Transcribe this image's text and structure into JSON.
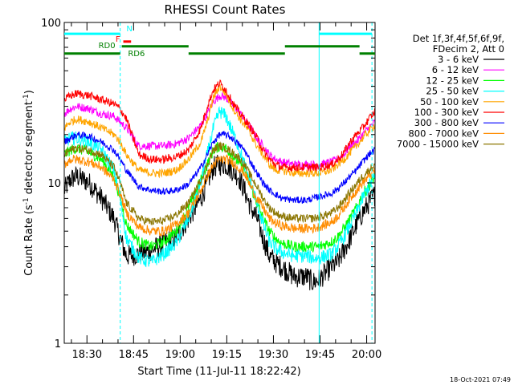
{
  "chart_data": {
    "type": "line",
    "title": "RHESSI Count Rates",
    "xlabel": "Start Time (11-Jul-11 18:22:42)",
    "ylabel_main": "Count Rate (s",
    "ylabel_sup1": "-1",
    "ylabel_mid": " detector segment",
    "ylabel_sup2": "-1",
    "ylabel_end": ")",
    "x_axis_unit": "minutes after 18:22:42",
    "xlim": [
      0,
      100
    ],
    "ylim": [
      1,
      100
    ],
    "y_scale": "log",
    "x_ticks": [
      {
        "value": 7.3,
        "label": "18:30"
      },
      {
        "value": 22.3,
        "label": "18:45"
      },
      {
        "value": 37.3,
        "label": "19:00"
      },
      {
        "value": 52.3,
        "label": "19:15"
      },
      {
        "value": 67.3,
        "label": "19:30"
      },
      {
        "value": 82.3,
        "label": "19:45"
      },
      {
        "value": 97.3,
        "label": "20:00"
      }
    ],
    "y_ticks": [
      {
        "value": 1,
        "label": "1"
      },
      {
        "value": 10,
        "label": "10"
      },
      {
        "value": 100,
        "label": "100"
      }
    ],
    "legend_placement": "right",
    "legend_header": [
      "Det 1f,3f,4f,5f,6f,9f,",
      "FDecim 2, Att 0"
    ],
    "series": [
      {
        "name": "3 - 6 keV",
        "color": "#000000",
        "noise": 0.16,
        "x": [
          0,
          2,
          4,
          8,
          12,
          16,
          18,
          20,
          24,
          28,
          32,
          36,
          40,
          44,
          46,
          48,
          50,
          52,
          54,
          56,
          58,
          60,
          62,
          64,
          66,
          68,
          70,
          74,
          78,
          80,
          82,
          86,
          88,
          90,
          92,
          94,
          96,
          98,
          100
        ],
        "y": [
          9.0,
          10.5,
          11.0,
          10.0,
          8.0,
          6.0,
          4.5,
          3.5,
          3.6,
          3.8,
          4.2,
          4.6,
          6.0,
          8.0,
          10.0,
          12.5,
          13.0,
          13.0,
          12.0,
          11.0,
          9.0,
          7.0,
          6.0,
          4.5,
          3.5,
          3.2,
          3.0,
          2.6,
          2.6,
          2.4,
          2.5,
          3.0,
          3.2,
          3.8,
          4.5,
          5.5,
          6.5,
          7.5,
          8.5
        ]
      },
      {
        "name": "6 - 12 keV",
        "color": "#ff00ff",
        "noise": 0.06,
        "x": [
          0,
          2,
          4,
          8,
          12,
          16,
          18,
          20,
          24,
          28,
          32,
          36,
          40,
          44,
          46,
          48,
          50,
          52,
          54,
          56,
          58,
          60,
          62,
          64,
          66,
          68,
          70,
          74,
          78,
          80,
          82,
          86,
          88,
          90,
          92,
          94,
          96,
          98,
          100
        ],
        "y": [
          27,
          29,
          30,
          29,
          27,
          26,
          24,
          22,
          17,
          17,
          17,
          17.5,
          19,
          23,
          27,
          32,
          35,
          34,
          31,
          28,
          25,
          22,
          19,
          17,
          15,
          14,
          13.5,
          13,
          13,
          13,
          13,
          13.5,
          14,
          15,
          17,
          18,
          20,
          22,
          24
        ]
      },
      {
        "name": "12 - 25 keV",
        "color": "#00ff00",
        "noise": 0.08,
        "x": [
          0,
          2,
          4,
          8,
          12,
          16,
          18,
          20,
          24,
          28,
          32,
          36,
          40,
          44,
          46,
          48,
          50,
          52,
          54,
          56,
          58,
          60,
          62,
          64,
          66,
          68,
          70,
          74,
          78,
          80,
          82,
          86,
          88,
          90,
          92,
          94,
          96,
          98,
          100
        ],
        "y": [
          15,
          16,
          16.5,
          15.5,
          14,
          11,
          8,
          5.5,
          4.3,
          4.0,
          4.3,
          5.0,
          7.0,
          10.5,
          13,
          16,
          17,
          16.5,
          15,
          13.5,
          12,
          9.5,
          7.5,
          6,
          5,
          4.5,
          4.2,
          4.0,
          4.0,
          4.0,
          4.0,
          4.3,
          4.6,
          5.2,
          6.0,
          7.0,
          8.5,
          9.5,
          11
        ]
      },
      {
        "name": "25 - 50 keV",
        "color": "#00ffff",
        "noise": 0.1,
        "x": [
          0,
          2,
          4,
          8,
          12,
          16,
          18,
          20,
          24,
          28,
          32,
          36,
          40,
          44,
          46,
          48,
          50,
          52,
          54,
          56,
          58,
          60,
          62,
          64,
          66,
          68,
          70,
          74,
          78,
          80,
          82,
          86,
          88,
          90,
          92,
          94,
          96,
          98,
          100
        ],
        "y": [
          18,
          19,
          19,
          18,
          16,
          12,
          8,
          4.5,
          3.4,
          3.2,
          3.6,
          4.2,
          6.0,
          10,
          15,
          22,
          28,
          26,
          21,
          17,
          13,
          10,
          7.5,
          5.5,
          4.3,
          3.9,
          3.7,
          3.5,
          3.5,
          3.4,
          3.4,
          3.6,
          4.0,
          4.6,
          5.5,
          6.5,
          8.0,
          9.5,
          11
        ]
      },
      {
        "name": "50 - 100 keV",
        "color": "#ffa500",
        "noise": 0.06,
        "x": [
          0,
          2,
          4,
          8,
          12,
          16,
          18,
          20,
          24,
          28,
          32,
          36,
          40,
          44,
          46,
          48,
          50,
          52,
          54,
          56,
          58,
          60,
          62,
          64,
          66,
          68,
          70,
          74,
          78,
          80,
          82,
          86,
          88,
          90,
          92,
          94,
          96,
          98,
          100
        ],
        "y": [
          22,
          24,
          25,
          24,
          22,
          20,
          18,
          15,
          12,
          11.5,
          11.5,
          12,
          14,
          18,
          24,
          34,
          40,
          36,
          30,
          26,
          23,
          20,
          17,
          15,
          13,
          12,
          12,
          11.5,
          11.5,
          11.5,
          11.5,
          12,
          13,
          14,
          15.5,
          17,
          19,
          21,
          23
        ]
      },
      {
        "name": "100 - 300 keV",
        "color": "#ff0000",
        "noise": 0.06,
        "x": [
          0,
          2,
          4,
          8,
          12,
          16,
          18,
          20,
          24,
          28,
          32,
          36,
          40,
          44,
          46,
          48,
          50,
          52,
          54,
          56,
          58,
          60,
          62,
          64,
          66,
          68,
          70,
          74,
          78,
          80,
          82,
          86,
          88,
          90,
          92,
          94,
          96,
          98,
          100
        ],
        "y": [
          33,
          35,
          36,
          35,
          33,
          31,
          29,
          25,
          15,
          14,
          14,
          14.5,
          16,
          22,
          30,
          38,
          42,
          38,
          32,
          28,
          25,
          22,
          19,
          16,
          14,
          13,
          12.5,
          12.5,
          12.5,
          12.5,
          12.5,
          13,
          14,
          15.5,
          18,
          20,
          22,
          25,
          28
        ]
      },
      {
        "name": "300 - 800 keV",
        "color": "#0000ff",
        "noise": 0.05,
        "x": [
          0,
          2,
          4,
          8,
          12,
          16,
          18,
          20,
          24,
          28,
          32,
          36,
          40,
          44,
          46,
          48,
          50,
          52,
          54,
          56,
          58,
          60,
          62,
          64,
          66,
          68,
          70,
          74,
          78,
          80,
          82,
          86,
          88,
          90,
          92,
          94,
          96,
          98,
          100
        ],
        "y": [
          18,
          19,
          20,
          19.5,
          18,
          16,
          14,
          12,
          9.5,
          9.0,
          8.8,
          9.0,
          9.8,
          12.5,
          15,
          18,
          20,
          20,
          19,
          17.5,
          16,
          13.5,
          11.5,
          10,
          9,
          8.5,
          8,
          7.8,
          7.8,
          8,
          8.2,
          8.6,
          9.2,
          10,
          11,
          12,
          13.5,
          15,
          16
        ]
      },
      {
        "name": "800 - 7000 keV",
        "color": "#ff8c00",
        "noise": 0.07,
        "x": [
          0,
          2,
          4,
          8,
          12,
          16,
          18,
          20,
          24,
          28,
          32,
          36,
          40,
          44,
          46,
          48,
          50,
          52,
          54,
          56,
          58,
          60,
          62,
          64,
          66,
          68,
          70,
          74,
          78,
          80,
          82,
          86,
          88,
          90,
          92,
          94,
          96,
          98,
          100
        ],
        "y": [
          13,
          14,
          14,
          13.5,
          12.5,
          10.5,
          8.5,
          6.5,
          5.3,
          5.0,
          5.0,
          5.5,
          6.5,
          9,
          11,
          13,
          14,
          14,
          13.5,
          12.5,
          11.5,
          9.5,
          8,
          7,
          6,
          5.6,
          5.4,
          5.2,
          5.2,
          5.2,
          5.3,
          5.7,
          6.2,
          7,
          8,
          9,
          10,
          11,
          12
        ]
      },
      {
        "name": "7000 - 15000 keV",
        "color": "#8b7500",
        "noise": 0.06,
        "x": [
          0,
          2,
          4,
          8,
          12,
          16,
          18,
          20,
          24,
          28,
          32,
          36,
          40,
          44,
          46,
          48,
          50,
          52,
          54,
          56,
          58,
          60,
          62,
          64,
          66,
          68,
          70,
          74,
          78,
          80,
          82,
          86,
          88,
          90,
          92,
          94,
          96,
          98,
          100
        ],
        "y": [
          15,
          16,
          16.5,
          16,
          15,
          12.5,
          10,
          7.5,
          6,
          5.7,
          5.8,
          6.3,
          7.5,
          10.5,
          13,
          16,
          17,
          16.5,
          15.5,
          14.5,
          13,
          11,
          9.5,
          8,
          7,
          6.5,
          6.2,
          6.0,
          6.0,
          6.0,
          6.1,
          6.5,
          7,
          7.8,
          8.8,
          9.8,
          11,
          12,
          13
        ]
      }
    ],
    "vlines": [
      {
        "x": 0,
        "style": "solid",
        "color": "#00ffff"
      },
      {
        "x": 18,
        "style": "dashed",
        "color": "#00ffff"
      },
      {
        "x": 82,
        "style": "solid",
        "color": "#00ffff"
      },
      {
        "x": 99,
        "style": "dashed",
        "color": "#00ffff"
      }
    ],
    "annotations": {
      "cyan_bars": [
        {
          "x0": 0,
          "x1": 18,
          "y": 85,
          "color": "#00ffff"
        },
        {
          "x0": 82,
          "x1": 99,
          "y": 85,
          "color": "#00ffff"
        }
      ],
      "N_label": {
        "text": "N",
        "x": 20,
        "y": 88,
        "color": "#00ffff"
      },
      "F_label": {
        "text": "F",
        "x": 16.5,
        "y": 76,
        "color": "#ff0000"
      },
      "F_bar": {
        "x0": 19,
        "x1": 21.5,
        "y": 76,
        "color": "#ff0000"
      },
      "RD0_label": {
        "text": "RD0",
        "x": 11,
        "y": 69,
        "color": "#008000"
      },
      "RD0_bar": {
        "x0": 18.5,
        "x1": 40,
        "y": 71,
        "color": "#008000"
      },
      "RD6_label": {
        "text": "RD6",
        "x": 20.5,
        "y": 61.5,
        "color": "#008000"
      },
      "RD6_bars": [
        {
          "x0": 0,
          "x1": 18,
          "y": 64,
          "color": "#008000"
        },
        {
          "x0": 40,
          "x1": 71,
          "y": 64,
          "color": "#008000"
        },
        {
          "x0": 71,
          "x1": 95,
          "y": 71,
          "color": "#008000"
        },
        {
          "x0": 95,
          "x1": 100,
          "y": 64,
          "color": "#008000"
        }
      ]
    },
    "timestamp": "18-Oct-2021 07:49"
  }
}
